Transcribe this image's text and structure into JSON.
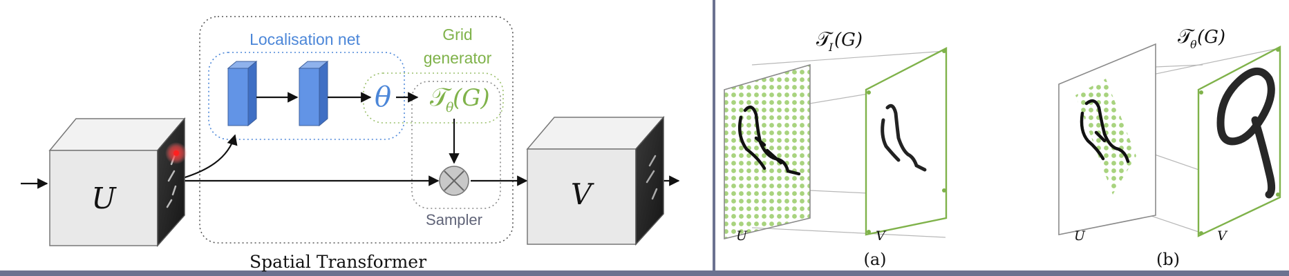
{
  "colors": {
    "blue": "#4b86d8",
    "green": "#7fb24a",
    "gray_text": "#606478",
    "frame": "#6b7290",
    "dot": "#a3d07a",
    "ink": "#111111"
  },
  "left_panel": {
    "caption": "Spatial Transformer",
    "localisation_label": "Localisation net",
    "grid_label_line1": "Grid",
    "grid_label_line2": "generator",
    "sampler_label": "Sampler",
    "theta_symbol": "θ",
    "tau_symbol": "𝒯",
    "theta_sub": "θ",
    "g_arg": "(G)",
    "input_label": "U",
    "output_label": "V"
  },
  "panel_a": {
    "title_symbol": "𝒯",
    "title_sub": "I",
    "title_arg": "(G)",
    "left_plane_label": "U",
    "right_plane_label": "V",
    "caption": "(a)"
  },
  "panel_b": {
    "title_symbol": "𝒯",
    "title_sub": "θ",
    "title_arg": "(G)",
    "left_plane_label": "U",
    "right_plane_label": "V",
    "caption": "(b)"
  }
}
